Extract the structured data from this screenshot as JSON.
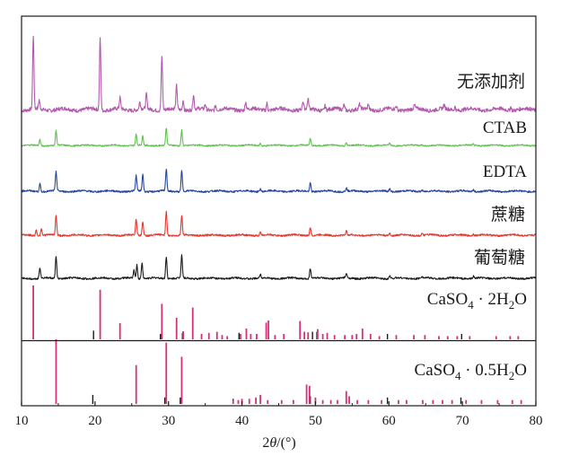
{
  "chart_data": {
    "type": "line",
    "x_axis": {
      "label": "2θ/(°)",
      "label_parts": [
        "2",
        "θ",
        "/(°)"
      ],
      "range": [
        10,
        80
      ],
      "ticks": [
        10,
        20,
        30,
        40,
        50,
        60,
        70,
        80
      ]
    },
    "y_axis": {
      "label": "",
      "ticks": []
    },
    "grid": false,
    "series": [
      {
        "name": "无添加剂",
        "color": "#b25aae",
        "peaks": [
          [
            11.6,
            1.0
          ],
          [
            12.4,
            0.12
          ],
          [
            20.7,
            0.98
          ],
          [
            23.4,
            0.15
          ],
          [
            26.1,
            0.1
          ],
          [
            27.0,
            0.2
          ],
          [
            29.1,
            0.74
          ],
          [
            31.1,
            0.32
          ],
          [
            32.0,
            0.14
          ],
          [
            33.4,
            0.2
          ],
          [
            35.0,
            0.07
          ],
          [
            36.4,
            0.07
          ],
          [
            40.5,
            0.11
          ],
          [
            43.4,
            0.1
          ],
          [
            48.3,
            0.11
          ],
          [
            49.0,
            0.13
          ],
          [
            51.3,
            0.06
          ],
          [
            53.9,
            0.07
          ],
          [
            56.0,
            0.06
          ],
          [
            57.2,
            0.07
          ],
          [
            61.0,
            0.05
          ],
          [
            63.5,
            0.05
          ],
          [
            67.5,
            0.05
          ],
          [
            69.0,
            0.05
          ],
          [
            76.6,
            0.05
          ]
        ]
      },
      {
        "name": "CTAB",
        "color": "#5fc24f",
        "peaks": [
          [
            12.5,
            0.2
          ],
          [
            14.7,
            0.5
          ],
          [
            25.6,
            0.38
          ],
          [
            26.5,
            0.32
          ],
          [
            29.7,
            0.6
          ],
          [
            31.8,
            0.55
          ],
          [
            42.5,
            0.08
          ],
          [
            49.3,
            0.24
          ],
          [
            54.2,
            0.1
          ],
          [
            60.1,
            0.07
          ],
          [
            64.5,
            0.05
          ],
          [
            71.5,
            0.05
          ]
        ]
      },
      {
        "name": "EDTA",
        "color": "#26479e",
        "peaks": [
          [
            12.5,
            0.22
          ],
          [
            14.7,
            0.55
          ],
          [
            25.6,
            0.43
          ],
          [
            26.5,
            0.48
          ],
          [
            29.7,
            0.62
          ],
          [
            31.8,
            0.58
          ],
          [
            42.5,
            0.08
          ],
          [
            49.3,
            0.24
          ],
          [
            54.2,
            0.1
          ],
          [
            60.1,
            0.07
          ],
          [
            64.5,
            0.05
          ],
          [
            71.5,
            0.05
          ]
        ]
      },
      {
        "name": "蔗糖",
        "color": "#e8362c",
        "peaks": [
          [
            12.0,
            0.15
          ],
          [
            12.7,
            0.2
          ],
          [
            14.7,
            0.55
          ],
          [
            25.6,
            0.45
          ],
          [
            26.5,
            0.4
          ],
          [
            29.7,
            0.68
          ],
          [
            31.8,
            0.55
          ],
          [
            42.5,
            0.08
          ],
          [
            49.3,
            0.24
          ],
          [
            54.2,
            0.1
          ],
          [
            60.1,
            0.07
          ],
          [
            64.5,
            0.05
          ],
          [
            71.5,
            0.05
          ]
        ]
      },
      {
        "name": "葡萄糖",
        "color": "#1a1a1a",
        "peaks": [
          [
            12.5,
            0.3
          ],
          [
            14.7,
            0.62
          ],
          [
            25.3,
            0.22
          ],
          [
            25.7,
            0.38
          ],
          [
            26.4,
            0.45
          ],
          [
            29.7,
            0.62
          ],
          [
            31.8,
            0.65
          ],
          [
            42.5,
            0.1
          ],
          [
            49.3,
            0.28
          ],
          [
            54.2,
            0.12
          ],
          [
            60.1,
            0.08
          ],
          [
            64.5,
            0.06
          ],
          [
            71.5,
            0.06
          ]
        ]
      }
    ],
    "reference_patterns": [
      {
        "name": "CaSO4 · 2H2O",
        "label_parts": [
          "CaSO",
          "4",
          " · 2H",
          "2",
          "O"
        ],
        "pink": [
          [
            11.6,
            1.0
          ],
          [
            20.7,
            0.92
          ],
          [
            23.4,
            0.3
          ],
          [
            29.1,
            0.66
          ],
          [
            31.1,
            0.4
          ],
          [
            32.0,
            0.15
          ],
          [
            33.3,
            0.59
          ],
          [
            34.5,
            0.1
          ],
          [
            35.5,
            0.12
          ],
          [
            36.6,
            0.14
          ],
          [
            37.3,
            0.08
          ],
          [
            38.0,
            0.06
          ],
          [
            39.8,
            0.1
          ],
          [
            40.6,
            0.2
          ],
          [
            41.2,
            0.1
          ],
          [
            42.0,
            0.1
          ],
          [
            43.3,
            0.31
          ],
          [
            43.6,
            0.35
          ],
          [
            44.5,
            0.08
          ],
          [
            45.7,
            0.1
          ],
          [
            47.9,
            0.34
          ],
          [
            48.5,
            0.14
          ],
          [
            49.0,
            0.13
          ],
          [
            50.3,
            0.19
          ],
          [
            51.0,
            0.1
          ],
          [
            51.6,
            0.12
          ],
          [
            52.6,
            0.08
          ],
          [
            54.0,
            0.08
          ],
          [
            55.0,
            0.08
          ],
          [
            55.6,
            0.1
          ],
          [
            56.4,
            0.2
          ],
          [
            57.5,
            0.1
          ],
          [
            58.7,
            0.06
          ],
          [
            61.0,
            0.08
          ],
          [
            63.4,
            0.08
          ],
          [
            64.9,
            0.08
          ],
          [
            66.8,
            0.06
          ],
          [
            68.0,
            0.06
          ],
          [
            69.3,
            0.06
          ],
          [
            71.0,
            0.06
          ],
          [
            74.6,
            0.06
          ],
          [
            76.5,
            0.06
          ],
          [
            77.6,
            0.06
          ]
        ],
        "black": [
          [
            19.8,
            0.16
          ],
          [
            28.9,
            0.1
          ],
          [
            31.9,
            0.12
          ],
          [
            39.6,
            0.12
          ],
          [
            49.6,
            0.14
          ],
          [
            50.2,
            0.14
          ],
          [
            59.8,
            0.1
          ],
          [
            69.9,
            0.1
          ]
        ]
      },
      {
        "name": "CaSO4 · 0.5H2O",
        "label_parts": [
          "CaSO",
          "4",
          " · 0.5H",
          "2",
          "O"
        ],
        "pink": [
          [
            14.7,
            1.0
          ],
          [
            25.6,
            0.6
          ],
          [
            29.7,
            0.95
          ],
          [
            31.8,
            0.73
          ],
          [
            38.8,
            0.06
          ],
          [
            39.5,
            0.06
          ],
          [
            40.0,
            0.08
          ],
          [
            41.0,
            0.08
          ],
          [
            41.9,
            0.1
          ],
          [
            42.5,
            0.14
          ],
          [
            43.5,
            0.06
          ],
          [
            45.4,
            0.06
          ],
          [
            47.0,
            0.06
          ],
          [
            48.8,
            0.3
          ],
          [
            49.2,
            0.28
          ],
          [
            50.0,
            0.1
          ],
          [
            51.0,
            0.06
          ],
          [
            52.1,
            0.06
          ],
          [
            53.0,
            0.06
          ],
          [
            54.2,
            0.2
          ],
          [
            54.6,
            0.12
          ],
          [
            55.7,
            0.06
          ],
          [
            57.2,
            0.06
          ],
          [
            59.0,
            0.06
          ],
          [
            61.3,
            0.06
          ],
          [
            62.4,
            0.06
          ],
          [
            64.6,
            0.06
          ],
          [
            66.0,
            0.06
          ],
          [
            67.3,
            0.06
          ],
          [
            68.6,
            0.06
          ],
          [
            70.5,
            0.06
          ],
          [
            72.6,
            0.06
          ],
          [
            74.8,
            0.06
          ],
          [
            76.8,
            0.06
          ],
          [
            78.0,
            0.06
          ]
        ],
        "black": [
          [
            19.7,
            0.14
          ],
          [
            29.5,
            0.1
          ],
          [
            31.6,
            0.1
          ],
          [
            38.8,
            0.08
          ],
          [
            49.3,
            0.12
          ],
          [
            59.8,
            0.1
          ],
          [
            69.8,
            0.1
          ]
        ]
      }
    ]
  }
}
